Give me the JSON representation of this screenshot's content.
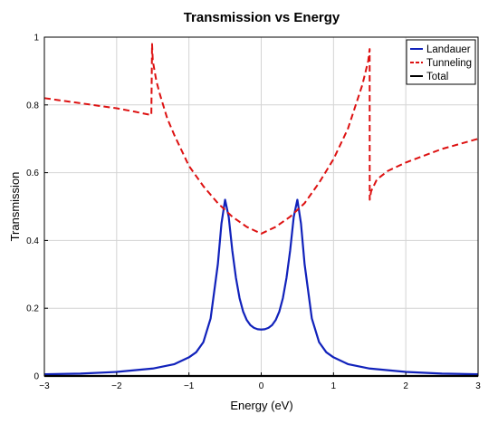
{
  "chart_data": {
    "type": "line",
    "title": "Transmission vs Energy",
    "xlabel": "Energy (eV)",
    "ylabel": "Transmission",
    "xlim": [
      -3,
      3
    ],
    "ylim": [
      0,
      1
    ],
    "xticks": [
      -3,
      -2,
      -1,
      0,
      1,
      2,
      3
    ],
    "xtick_labels": [
      "−3",
      "−2",
      "−1",
      "0",
      "1",
      "2",
      "3"
    ],
    "yticks": [
      0,
      0.2,
      0.4,
      0.6,
      0.8,
      1
    ],
    "ytick_labels": [
      "0",
      "0.2",
      "0.4",
      "0.6",
      "0.8",
      "1"
    ],
    "grid": true,
    "legend_position": "top-right",
    "series": [
      {
        "name": "Landauer",
        "color": "#1122bb",
        "style": "solid",
        "x": [
          -3,
          -2.5,
          -2,
          -1.5,
          -1.2,
          -1,
          -0.9,
          -0.8,
          -0.7,
          -0.6,
          -0.55,
          -0.5,
          -0.45,
          -0.4,
          -0.35,
          -0.3,
          -0.25,
          -0.2,
          -0.15,
          -0.1,
          -0.05,
          0,
          0.05,
          0.1,
          0.15,
          0.2,
          0.25,
          0.3,
          0.35,
          0.4,
          0.45,
          0.5,
          0.55,
          0.6,
          0.7,
          0.8,
          0.9,
          1,
          1.2,
          1.5,
          2,
          2.5,
          3
        ],
        "y": [
          0.005,
          0.007,
          0.012,
          0.022,
          0.035,
          0.055,
          0.07,
          0.1,
          0.17,
          0.33,
          0.45,
          0.52,
          0.47,
          0.37,
          0.29,
          0.23,
          0.19,
          0.165,
          0.15,
          0.142,
          0.138,
          0.137,
          0.138,
          0.142,
          0.15,
          0.165,
          0.19,
          0.23,
          0.29,
          0.37,
          0.47,
          0.52,
          0.45,
          0.33,
          0.17,
          0.1,
          0.07,
          0.055,
          0.035,
          0.022,
          0.012,
          0.007,
          0.005
        ]
      },
      {
        "name": "Tunneling",
        "color": "#dd1111",
        "style": "dashed",
        "x": [
          -3,
          -2.5,
          -2,
          -1.75,
          -1.52,
          -1.51,
          -1.5,
          -1.45,
          -1.4,
          -1.3,
          -1.2,
          -1,
          -0.8,
          -0.6,
          -0.4,
          -0.2,
          0,
          0.2,
          0.4,
          0.6,
          0.8,
          1,
          1.2,
          1.4,
          1.48,
          1.5,
          1.501,
          1.52,
          1.6,
          1.75,
          2,
          2.5,
          3
        ],
        "y": [
          0.82,
          0.805,
          0.79,
          0.78,
          0.77,
          0.98,
          0.93,
          0.87,
          0.83,
          0.76,
          0.71,
          0.62,
          0.56,
          0.51,
          0.47,
          0.44,
          0.42,
          0.44,
          0.47,
          0.51,
          0.57,
          0.64,
          0.73,
          0.86,
          0.93,
          0.965,
          0.52,
          0.545,
          0.58,
          0.605,
          0.63,
          0.67,
          0.7
        ]
      },
      {
        "name": "Total",
        "color": "#000000",
        "style": "solid",
        "x": [
          -3,
          3
        ],
        "y": [
          0,
          0
        ]
      }
    ]
  }
}
